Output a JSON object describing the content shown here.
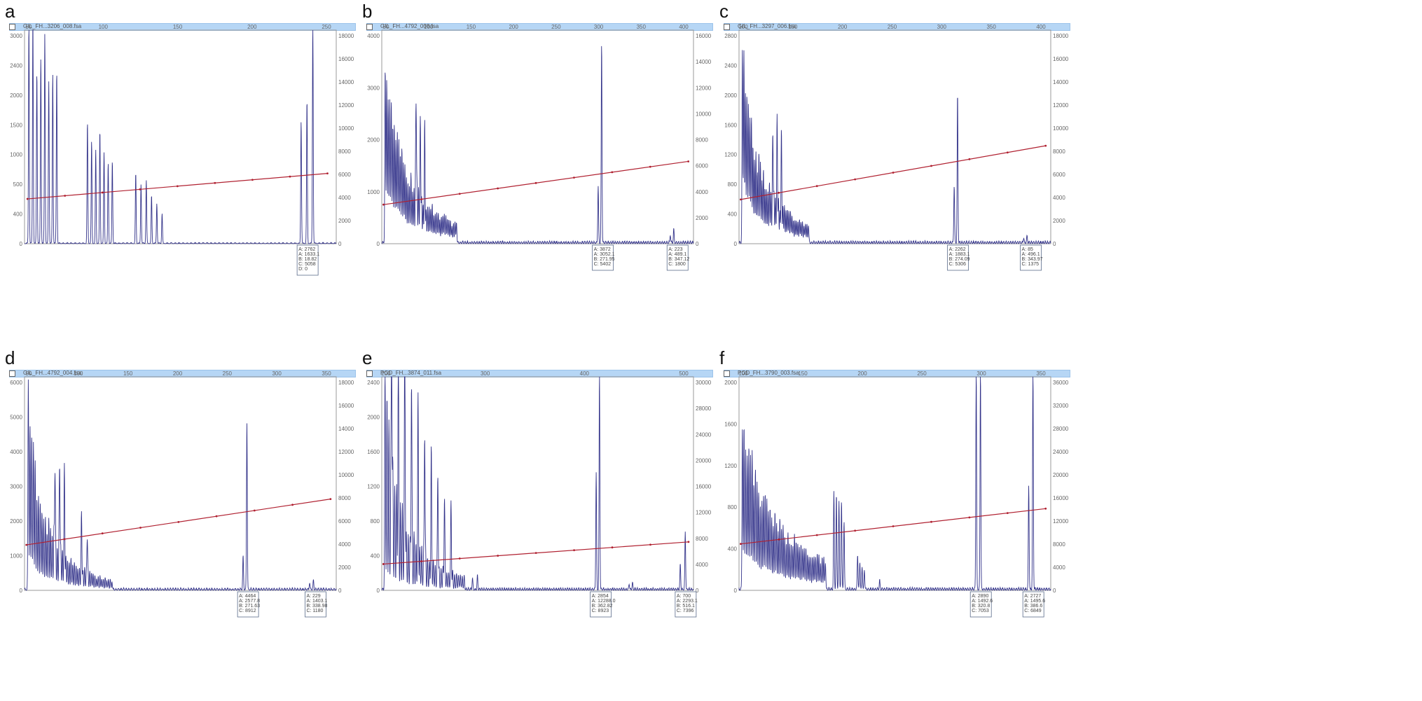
{
  "colors": {
    "trace": "#33338a",
    "fit_line": "#b02030",
    "window_bar": "#b6d6f5",
    "frame": "#9a9a9a"
  },
  "chart_data": [
    {
      "panel_letter": "a",
      "type": "line",
      "window_title": "GIL_FH...3206_008.fsa",
      "xlabel": "",
      "ylabel": "",
      "x_ticks": [
        "50",
        "100",
        "150",
        "200",
        "250"
      ],
      "y_left_ticks": [
        "3000",
        "2400",
        "2000",
        "1500",
        "1000",
        "500",
        "400",
        "0"
      ],
      "y_right_ticks": [
        "18000",
        "16000",
        "14000",
        "12000",
        "10000",
        "8000",
        "6000",
        "4000",
        "2000",
        "0"
      ],
      "ylim": [
        0,
        3100
      ],
      "y_right_lim": [
        0,
        19000
      ],
      "fit_line": [
        [
          50,
          650
        ],
        [
          255,
          1020
        ]
      ],
      "peak_groups": [
        {
          "x_start": 51,
          "x_end": 70,
          "n": 8,
          "h_start": 3000,
          "h_end": 2500,
          "decay": "flat"
        },
        {
          "x_start": 91,
          "x_end": 108,
          "n": 7,
          "h_start": 1700,
          "h_end": 1200,
          "decay": "flat"
        },
        {
          "x_start": 124,
          "x_end": 142,
          "n": 6,
          "h_start": 1100,
          "h_end": 500,
          "decay": "linear"
        },
        {
          "x_start": 237,
          "x_end": 245,
          "n": 3,
          "h_start": 1600,
          "h_end": 3000,
          "decay": "linear"
        }
      ],
      "baseline_noise": 12,
      "callouts": [
        {
          "x": 240,
          "lines": [
            "A: 2762",
            "A: 1633.1",
            "B: 18.82",
            "C: 5058",
            "D: 0"
          ]
        }
      ]
    },
    {
      "panel_letter": "b",
      "type": "line",
      "window_title": "GIL_FH...4792_008.fsa",
      "xlabel": "",
      "ylabel": "",
      "x_ticks": [
        "50",
        "100",
        "150",
        "200",
        "250",
        "300",
        "350",
        "400"
      ],
      "y_left_ticks": [
        "4000",
        "3000",
        "2000",
        "1000",
        "0"
      ],
      "y_right_ticks": [
        "16000",
        "14000",
        "12000",
        "10000",
        "8000",
        "6000",
        "4000",
        "2000",
        "0"
      ],
      "ylim": [
        0,
        4100
      ],
      "y_right_lim": [
        0,
        17000
      ],
      "fit_line": [
        [
          50,
          750
        ],
        [
          405,
          1580
        ]
      ],
      "peak_groups": [
        {
          "x_start": 52,
          "x_end": 135,
          "n": 48,
          "h_start": 3800,
          "h_end": 350,
          "decay": "exp"
        },
        {
          "x_start": 88,
          "x_end": 98,
          "n": 3,
          "h_start": 2300,
          "h_end": 1400,
          "decay": "linear"
        },
        {
          "x_start": 300,
          "x_end": 304,
          "n": 2,
          "h_start": 1100,
          "h_end": 3500,
          "decay": "linear"
        },
        {
          "x_start": 384,
          "x_end": 388,
          "n": 2,
          "h_start": 150,
          "h_end": 230,
          "decay": "linear"
        }
      ],
      "baseline_noise": 40,
      "callouts": [
        {
          "x": 303,
          "lines": [
            "A: 3872",
            "A: 3052.1",
            "B: 271.95",
            "C: 5402"
          ]
        },
        {
          "x": 390,
          "lines": [
            "A: 223",
            "A: 489.1",
            "B: 347.12",
            "C: 1800"
          ]
        }
      ]
    },
    {
      "panel_letter": "c",
      "type": "line",
      "window_title": "GIL_FH...3297_006.fsa",
      "xlabel": "",
      "ylabel": "",
      "x_ticks": [
        "100",
        "150",
        "200",
        "250",
        "300",
        "350",
        "400"
      ],
      "y_left_ticks": [
        "2800",
        "2400",
        "2000",
        "1600",
        "1200",
        "800",
        "400",
        "0"
      ],
      "y_right_ticks": [
        "18000",
        "16000",
        "14000",
        "12000",
        "10000",
        "8000",
        "6000",
        "4000",
        "2000",
        "0"
      ],
      "ylim": [
        0,
        2900
      ],
      "y_right_lim": [
        0,
        19000
      ],
      "fit_line": [
        [
          50,
          600
        ],
        [
          410,
          1330
        ]
      ],
      "peak_groups": [
        {
          "x_start": 52,
          "x_end": 130,
          "n": 45,
          "h_start": 2750,
          "h_end": 230,
          "decay": "exp"
        },
        {
          "x_start": 88,
          "x_end": 98,
          "n": 3,
          "h_start": 1300,
          "h_end": 1000,
          "decay": "linear"
        },
        {
          "x_start": 302,
          "x_end": 306,
          "n": 2,
          "h_start": 900,
          "h_end": 2150,
          "decay": "linear"
        },
        {
          "x_start": 384,
          "x_end": 388,
          "n": 2,
          "h_start": 60,
          "h_end": 100,
          "decay": "linear"
        }
      ],
      "baseline_noise": 30,
      "callouts": [
        {
          "x": 304,
          "lines": [
            "A: 2262",
            "A: 1883.1",
            "B: 274.09",
            "C: 5306"
          ]
        },
        {
          "x": 390,
          "lines": [
            "A: 85",
            "A: 496.1",
            "B: 343.97",
            "C: 1375"
          ]
        }
      ]
    },
    {
      "panel_letter": "d",
      "type": "line",
      "window_title": "GIL_FH...4792_004.fsa",
      "xlabel": "",
      "ylabel": "",
      "x_ticks": [
        "50",
        "100",
        "150",
        "200",
        "250",
        "300",
        "350"
      ],
      "y_left_ticks": [
        "6000",
        "5000",
        "4000",
        "3000",
        "2000",
        "1000",
        "0"
      ],
      "y_right_ticks": [
        "18000",
        "16000",
        "14000",
        "12000",
        "10000",
        "8000",
        "6000",
        "4000",
        "2000",
        "0"
      ],
      "ylim": [
        0,
        6200
      ],
      "y_right_lim": [
        0,
        19000
      ],
      "fit_line": [
        [
          50,
          1320
        ],
        [
          370,
          2650
        ]
      ],
      "peak_groups": [
        {
          "x_start": 52,
          "x_end": 140,
          "n": 50,
          "h_start": 6000,
          "h_end": 250,
          "decay": "exp"
        },
        {
          "x_start": 80,
          "x_end": 90,
          "n": 3,
          "h_start": 3100,
          "h_end": 2500,
          "decay": "linear"
        },
        {
          "x_start": 108,
          "x_end": 114,
          "n": 2,
          "h_start": 1700,
          "h_end": 1200,
          "decay": "linear"
        },
        {
          "x_start": 278,
          "x_end": 282,
          "n": 2,
          "h_start": 1100,
          "h_end": 4700,
          "decay": "linear"
        },
        {
          "x_start": 348,
          "x_end": 352,
          "n": 2,
          "h_start": 180,
          "h_end": 260,
          "decay": "linear"
        }
      ],
      "baseline_noise": 55,
      "callouts": [
        {
          "x": 281,
          "lines": [
            "A: 4464",
            "A: 2577.8",
            "B: 271.63",
            "C: 8912"
          ]
        },
        {
          "x": 352,
          "lines": [
            "A: 229",
            "A: 1403.1",
            "B: 338.98",
            "C: 1180"
          ]
        }
      ]
    },
    {
      "panel_letter": "e",
      "type": "line",
      "window_title": "PGD_FH...3874_011.fsa",
      "xlabel": "",
      "ylabel": "",
      "x_ticks": [
        "200",
        "300",
        "400",
        "500"
      ],
      "y_left_ticks": [
        "2400",
        "2000",
        "1600",
        "1200",
        "800",
        "400",
        "0"
      ],
      "y_right_ticks": [
        "30000",
        "28000",
        "24000",
        "20000",
        "16000",
        "12000",
        "8000",
        "4000",
        "0"
      ],
      "ylim": [
        0,
        2600
      ],
      "y_right_lim": [
        0,
        32000
      ],
      "fit_line": [
        [
          150,
          320
        ],
        [
          520,
          590
        ]
      ],
      "peak_groups": [
        {
          "x_start": 152,
          "x_end": 248,
          "n": 42,
          "h_start": 2600,
          "h_end": 150,
          "decay": "exp"
        },
        {
          "x_start": 160,
          "x_end": 200,
          "n": 6,
          "h_start": 2500,
          "h_end": 2000,
          "decay": "linear"
        },
        {
          "x_start": 208,
          "x_end": 232,
          "n": 4,
          "h_start": 1500,
          "h_end": 900,
          "decay": "linear"
        },
        {
          "x_start": 258,
          "x_end": 264,
          "n": 2,
          "h_start": 120,
          "h_end": 180,
          "decay": "linear"
        },
        {
          "x_start": 408,
          "x_end": 412,
          "n": 2,
          "h_start": 1300,
          "h_end": 2600,
          "decay": "linear"
        },
        {
          "x_start": 448,
          "x_end": 452,
          "n": 2,
          "h_start": 60,
          "h_end": 90,
          "decay": "linear"
        },
        {
          "x_start": 510,
          "x_end": 516,
          "n": 2,
          "h_start": 350,
          "h_end": 700,
          "decay": "linear"
        }
      ],
      "baseline_noise": 25,
      "callouts": [
        {
          "x": 411,
          "lines": [
            "A: 2854",
            "A: 12288.0",
            "B: 362.82",
            "C: 8923"
          ]
        },
        {
          "x": 514,
          "lines": [
            "A: 700",
            "A: 2293.1",
            "B: 516.1",
            "C: 7396"
          ]
        }
      ]
    },
    {
      "panel_letter": "f",
      "type": "line",
      "window_title": "PGD_FH...3790_003.fsa",
      "xlabel": "",
      "ylabel": "",
      "x_ticks": [
        "100",
        "150",
        "200",
        "250",
        "300",
        "350"
      ],
      "y_left_ticks": [
        "2000",
        "1600",
        "1200",
        "800",
        "400",
        "0"
      ],
      "y_right_ticks": [
        "36000",
        "32000",
        "28000",
        "24000",
        "20000",
        "16000",
        "12000",
        "8000",
        "4000",
        "0"
      ],
      "ylim": [
        0,
        2300
      ],
      "y_right_lim": [
        0,
        38000
      ],
      "fit_line": [
        [
          50,
          500
        ],
        [
          410,
          880
        ]
      ],
      "peak_groups": [
        {
          "x_start": 52,
          "x_end": 150,
          "n": 52,
          "h_start": 2050,
          "h_end": 300,
          "decay": "exp"
        },
        {
          "x_start": 160,
          "x_end": 172,
          "n": 5,
          "h_start": 950,
          "h_end": 800,
          "decay": "flat"
        },
        {
          "x_start": 188,
          "x_end": 196,
          "n": 4,
          "h_start": 350,
          "h_end": 200,
          "decay": "linear"
        },
        {
          "x_start": 214,
          "x_end": 216,
          "n": 1,
          "h_start": 90,
          "h_end": 90,
          "decay": "flat"
        },
        {
          "x_start": 328,
          "x_end": 333,
          "n": 2,
          "h_start": 2300,
          "h_end": 2300,
          "decay": "flat"
        },
        {
          "x_start": 390,
          "x_end": 395,
          "n": 2,
          "h_start": 1300,
          "h_end": 2300,
          "decay": "linear"
        }
      ],
      "baseline_noise": 25,
      "callouts": [
        {
          "x": 331,
          "lines": [
            "A: 2890",
            "A: 1492.6",
            "B: 320.8",
            "C: 7053"
          ]
        },
        {
          "x": 393,
          "lines": [
            "A: 2727",
            "A: 1495.6",
            "B: 386.6",
            "C: 6849"
          ]
        }
      ]
    }
  ]
}
